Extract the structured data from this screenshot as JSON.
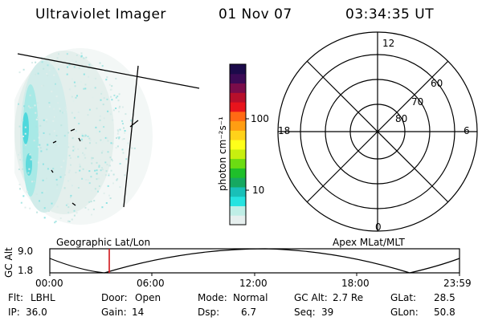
{
  "header": {
    "title": "Ultraviolet Imager",
    "date": "01 Nov 07",
    "time": "03:34:35 UT"
  },
  "colorbar": {
    "unit_label": "photon cm⁻²s⁻¹",
    "ticks": [
      "100",
      "10"
    ],
    "colors": [
      "#e6efee",
      "#bfeee6",
      "#26e3e0",
      "#19c0b8",
      "#16a860",
      "#1fbf2a",
      "#6bdc12",
      "#c8ef0f",
      "#ffff1a",
      "#ffd21a",
      "#ff9d12",
      "#ff6a14",
      "#e8141c",
      "#b70f2b",
      "#7a0c4a",
      "#3b0a55",
      "#1b0a4a"
    ]
  },
  "polar": {
    "mlt_labels": {
      "top": "12",
      "bottom": "0",
      "left": "18",
      "right": "6"
    },
    "lat_labels": [
      "60",
      "70",
      "80"
    ]
  },
  "timeline": {
    "left_label": "Geographic Lat/Lon",
    "right_label": "Apex MLat/MLT",
    "y_axis_label": "GC Alt",
    "y_max": "9.0",
    "y_min": "1.8",
    "x_ticks": [
      "00:00",
      "06:00",
      "12:00",
      "18:00",
      "23:59"
    ]
  },
  "status": {
    "flt_label": "Flt:",
    "flt_value": "LBHL",
    "ip_label": "IP:",
    "ip_value": "36.0",
    "door_label": "Door:",
    "door_value": "Open",
    "gain_label": "Gain:",
    "gain_value": "14",
    "mode_label": "Mode:",
    "mode_value": "Normal",
    "dsp_label": "Dsp:",
    "dsp_value": "6.7",
    "gcalt_label": "GC Alt:",
    "gcalt_value": "2.7 Re",
    "seq_label": "Seq:",
    "seq_value": "39",
    "glat_label": "GLat:",
    "glat_value": "28.5",
    "glon_label": "GLon:",
    "glon_value": "50.8"
  }
}
